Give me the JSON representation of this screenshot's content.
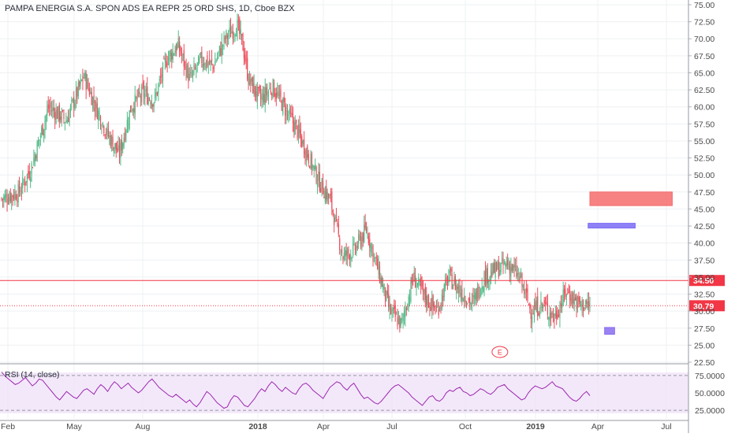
{
  "title": "PAMPA ENERGIA S.A. SPON ADS EA REPR 25 ORD SHS, 1D, Cboe BZX",
  "colors": {
    "up": "#53b987",
    "down": "#eb4d5c",
    "red_line": "#f23645",
    "rsi_line": "#9c27b0",
    "rsi_band": "#efe0f8",
    "zone_red": "#f56c6c",
    "zone_blue": "#7b6cf6",
    "zone_purple": "#8a6cf0",
    "grid": "#eef0f3",
    "axis_text": "#4a4a4a"
  },
  "chart_data": [
    {
      "type": "candlestick",
      "title": "PAMPA ENERGIA S.A. SPON ADS EA REPR 25 ORD SHS, 1D, Cboe BZX",
      "x_tick_labels": [
        "Feb",
        "May",
        "Aug",
        "2018",
        "Apr",
        "Jul",
        "Oct",
        "2019",
        "Apr",
        "Jul"
      ],
      "x_tick_bold": [
        "2018",
        "2019"
      ],
      "y_tick_labels": [
        "75.00",
        "72.50",
        "70.00",
        "67.50",
        "65.00",
        "62.50",
        "60.00",
        "57.50",
        "55.00",
        "52.50",
        "50.00",
        "47.50",
        "45.00",
        "42.50",
        "40.00",
        "37.50",
        "35.00",
        "32.50",
        "30.00",
        "27.50",
        "25.00",
        "22.50"
      ],
      "ylim": [
        22.5,
        75
      ],
      "grid": true,
      "close_path": [
        [
          0,
          46.5
        ],
        [
          0.03,
          47.5
        ],
        [
          0.05,
          51
        ],
        [
          0.08,
          60
        ],
        [
          0.11,
          58
        ],
        [
          0.14,
          64.5
        ],
        [
          0.16,
          60
        ],
        [
          0.18,
          56
        ],
        [
          0.2,
          53
        ],
        [
          0.22,
          60
        ],
        [
          0.24,
          62
        ],
        [
          0.26,
          61
        ],
        [
          0.28,
          67
        ],
        [
          0.3,
          69
        ],
        [
          0.32,
          64
        ],
        [
          0.34,
          67
        ],
        [
          0.36,
          66
        ],
        [
          0.38,
          70
        ],
        [
          0.4,
          72
        ],
        [
          0.41,
          69
        ],
        [
          0.42,
          64
        ],
        [
          0.44,
          61
        ],
        [
          0.46,
          63
        ],
        [
          0.48,
          60
        ],
        [
          0.5,
          57
        ],
        [
          0.52,
          53
        ],
        [
          0.54,
          49
        ],
        [
          0.56,
          46
        ],
        [
          0.58,
          38
        ],
        [
          0.6,
          39
        ],
        [
          0.62,
          42
        ],
        [
          0.64,
          36
        ],
        [
          0.66,
          30
        ],
        [
          0.68,
          28
        ],
        [
          0.7,
          35
        ],
        [
          0.72,
          32
        ],
        [
          0.74,
          30
        ],
        [
          0.76,
          35
        ],
        [
          0.78,
          33
        ],
        [
          0.8,
          31
        ],
        [
          0.82,
          35
        ],
        [
          0.84,
          36
        ],
        [
          0.86,
          37
        ],
        [
          0.88,
          35
        ],
        [
          0.9,
          30
        ],
        [
          0.92,
          31
        ],
        [
          0.94,
          29
        ],
        [
          0.96,
          33
        ],
        [
          0.98,
          31
        ],
        [
          1.0,
          30.79
        ]
      ],
      "horizontal_line": {
        "value": 34.5,
        "label": "34.50",
        "style": "solid",
        "color": "#f23645"
      },
      "last_price": {
        "value": 30.79,
        "label": "30.79",
        "style": "dotted",
        "color": "#f23645"
      },
      "zones": [
        {
          "name": "zone-red",
          "y_low": 45.5,
          "y_high": 47.5,
          "color": "#f56c6c",
          "time_start": 1.0,
          "time_end": 1.14
        },
        {
          "name": "zone-blue",
          "y_low": 42.2,
          "y_high": 42.9,
          "color": "#7b6cf6",
          "time_start": 0.997,
          "time_end": 1.077
        },
        {
          "name": "zone-purple",
          "y_low": 26.6,
          "y_high": 27.6,
          "color": "#8a6cf0",
          "time_start": 1.025,
          "time_end": 1.042
        }
      ],
      "event_marker": {
        "label": "E",
        "time": 0.847,
        "value": 24.0
      }
    },
    {
      "type": "line",
      "title": "RSI (14, close)",
      "y_tick_labels": [
        "75.0000",
        "50.0000",
        "25.0000"
      ],
      "ylim": [
        15,
        85
      ],
      "band": [
        30,
        70
      ],
      "series": [
        {
          "name": "RSI (14, close)",
          "values": [
            80,
            74,
            70,
            66,
            62,
            64,
            68,
            72,
            66,
            60,
            64,
            70,
            68,
            62,
            56,
            50,
            44,
            40,
            46,
            52,
            48,
            44,
            42,
            48,
            54,
            56,
            52,
            48,
            56,
            62,
            58,
            52,
            60,
            66,
            62,
            56,
            60,
            64,
            58,
            54,
            50,
            54,
            60,
            66,
            70,
            64,
            58,
            54,
            50,
            46,
            44,
            48,
            44,
            40,
            36,
            40,
            34,
            30,
            36,
            44,
            52,
            48,
            42,
            36,
            32,
            28,
            30,
            40,
            46,
            44,
            38,
            32,
            30,
            36,
            42,
            50,
            56,
            52,
            60,
            66,
            62,
            56,
            52,
            58,
            54,
            50,
            48,
            56,
            62,
            64,
            60,
            54,
            50,
            46,
            42,
            50,
            58,
            62,
            66,
            64,
            58,
            54,
            60,
            64,
            56,
            48,
            42,
            44,
            40,
            36,
            34,
            38,
            44,
            50,
            56,
            60,
            62,
            58,
            54,
            50,
            44,
            40,
            36,
            32,
            38,
            44,
            46,
            40,
            38,
            42,
            50,
            54,
            52,
            56,
            58,
            52,
            50,
            46,
            48,
            52,
            56,
            54,
            50,
            48,
            52,
            58,
            60,
            62,
            56,
            52,
            48,
            44,
            40,
            42,
            50,
            56,
            60,
            58,
            56,
            58,
            62,
            66,
            60,
            58,
            56,
            50,
            44,
            40,
            38,
            42,
            48,
            52,
            46
          ]
        }
      ]
    }
  ]
}
